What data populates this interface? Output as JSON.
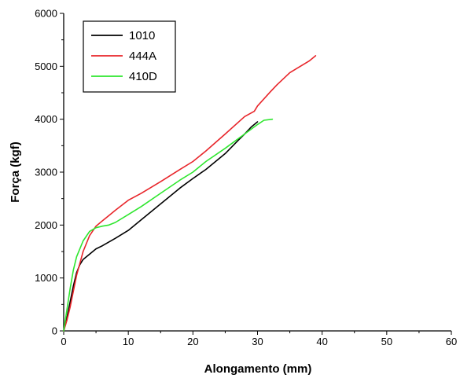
{
  "chart_data": {
    "type": "line",
    "xlabel": "Alongamento (mm)",
    "ylabel": "Força (kgf)",
    "xlim": [
      0,
      60
    ],
    "ylim": [
      0,
      6000
    ],
    "xticks": [
      0,
      10,
      20,
      30,
      40,
      50,
      60
    ],
    "yticks": [
      0,
      1000,
      2000,
      3000,
      4000,
      5000,
      6000
    ],
    "grid": false,
    "legend_position": "top-left",
    "series": [
      {
        "name": "1010",
        "color": "#000000",
        "x": [
          0,
          0.5,
          1,
          1.5,
          2,
          2.5,
          3,
          4,
          5,
          6,
          8,
          10,
          12,
          15,
          18,
          20,
          22,
          25,
          27,
          28,
          29,
          30
        ],
        "y": [
          0,
          250,
          550,
          850,
          1100,
          1250,
          1350,
          1450,
          1550,
          1610,
          1750,
          1900,
          2100,
          2400,
          2700,
          2880,
          3050,
          3350,
          3600,
          3720,
          3850,
          3950
        ]
      },
      {
        "name": "444A",
        "color": "#e8252a",
        "x": [
          0,
          0.5,
          1,
          1.5,
          2,
          3,
          4,
          5,
          6,
          7,
          8,
          10,
          12,
          15,
          18,
          20,
          22,
          25,
          28,
          29.5,
          30,
          32,
          33,
          35,
          38,
          39
        ],
        "y": [
          0,
          200,
          450,
          750,
          1050,
          1500,
          1800,
          1980,
          2080,
          2180,
          2280,
          2470,
          2600,
          2820,
          3050,
          3200,
          3400,
          3720,
          4050,
          4150,
          4250,
          4520,
          4650,
          4880,
          5100,
          5200
        ]
      },
      {
        "name": "410D",
        "color": "#2ee62e",
        "x": [
          0,
          0.5,
          1,
          1.5,
          2,
          3,
          4,
          5,
          6,
          7,
          8,
          10,
          12,
          15,
          18,
          20,
          22,
          25,
          28,
          30,
          31,
          32.3
        ],
        "y": [
          0,
          400,
          800,
          1150,
          1400,
          1700,
          1880,
          1950,
          1980,
          2000,
          2050,
          2200,
          2350,
          2600,
          2850,
          3000,
          3200,
          3450,
          3720,
          3900,
          3980,
          4000
        ]
      }
    ]
  }
}
